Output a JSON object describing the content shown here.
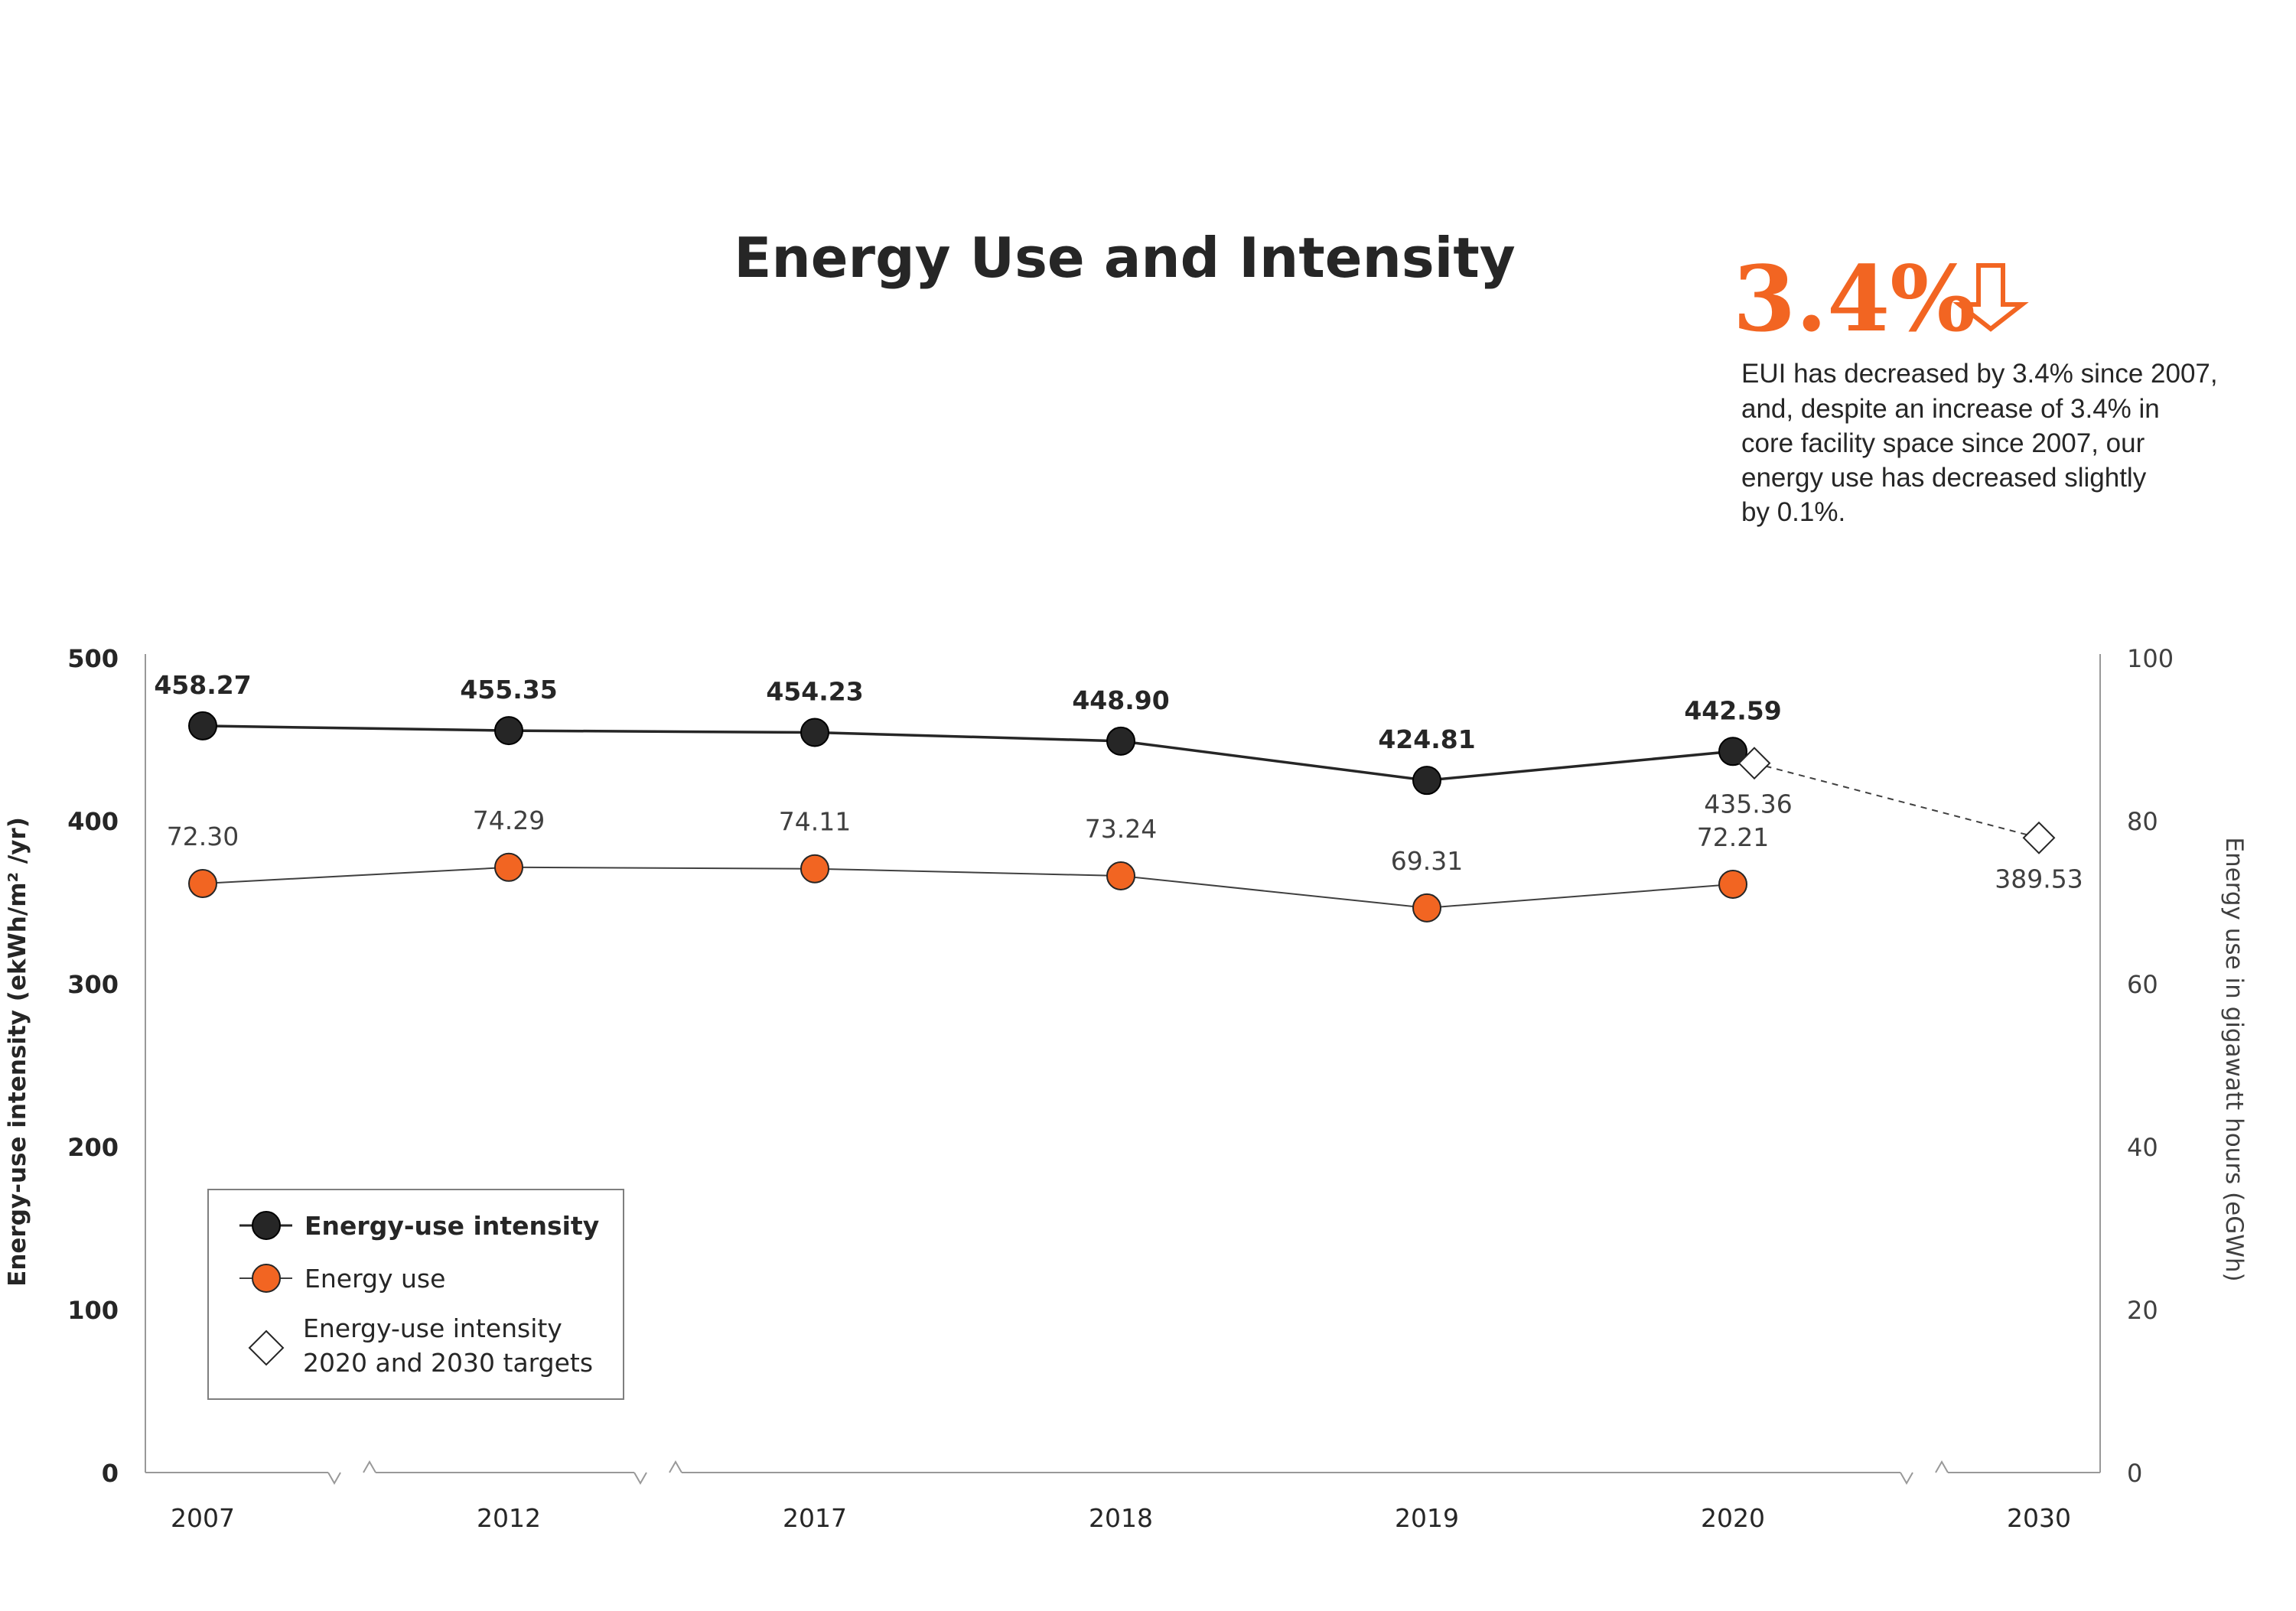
{
  "title": "Energy Use and Intensity",
  "callout": {
    "headline": "3.4%",
    "arrow_icon": "down-arrow-outline-icon",
    "lines": [
      "EUI has decreased by 3.4% since 2007,",
      "and, despite an increase of 3.4% in",
      "core facility space since 2007, our",
      "energy use has decreased slightly",
      "by 0.1%."
    ]
  },
  "colors": {
    "eui": "#262626",
    "energy_use": "#f26522",
    "target": "#ffffff",
    "axis": "#999999",
    "accent": "#f26522"
  },
  "chart_data": {
    "type": "line",
    "categories": [
      "2007",
      "2012",
      "2017",
      "2018",
      "2019",
      "2020",
      "2030"
    ],
    "y_left": {
      "label": "Energy-use intensity (ekWh/m² /yr)",
      "ticks": [
        "0",
        "100",
        "200",
        "300",
        "400",
        "500"
      ],
      "range": [
        0,
        500
      ]
    },
    "y_right": {
      "label": "Energy use in gigawatt hours (eGWh)",
      "ticks": [
        "0",
        "20",
        "40",
        "60",
        "80",
        "100"
      ],
      "range": [
        0,
        100
      ]
    },
    "axis_breaks": [
      "2007-2012",
      "2012-2017",
      "2020-2030"
    ],
    "series": [
      {
        "name": "Energy-use intensity",
        "axis": "left",
        "x": [
          "2007",
          "2012",
          "2017",
          "2018",
          "2019",
          "2020"
        ],
        "values": [
          458.27,
          455.35,
          454.23,
          448.9,
          424.81,
          442.59
        ],
        "labels": [
          "458.27",
          "455.35",
          "454.23",
          "448.90",
          "424.81",
          "442.59"
        ]
      },
      {
        "name": "Energy use",
        "axis": "right",
        "x": [
          "2007",
          "2012",
          "2017",
          "2018",
          "2019",
          "2020"
        ],
        "values": [
          72.3,
          74.29,
          74.11,
          73.24,
          69.31,
          72.21
        ],
        "labels": [
          "72.30",
          "74.29",
          "74.11",
          "73.24",
          "69.31",
          "72.21"
        ]
      },
      {
        "name": "Energy-use intensity 2020 and 2030 targets",
        "axis": "left",
        "x": [
          "2020",
          "2030"
        ],
        "values": [
          435.36,
          389.53
        ],
        "labels": [
          "435.36",
          "389.53"
        ]
      }
    ],
    "legend": {
      "position": "bottom-left",
      "entries": [
        {
          "label": "Energy-use intensity"
        },
        {
          "label": "Energy use"
        },
        {
          "label_line1": "Energy-use intensity",
          "label_line2": "2020 and 2030 targets"
        }
      ]
    }
  }
}
